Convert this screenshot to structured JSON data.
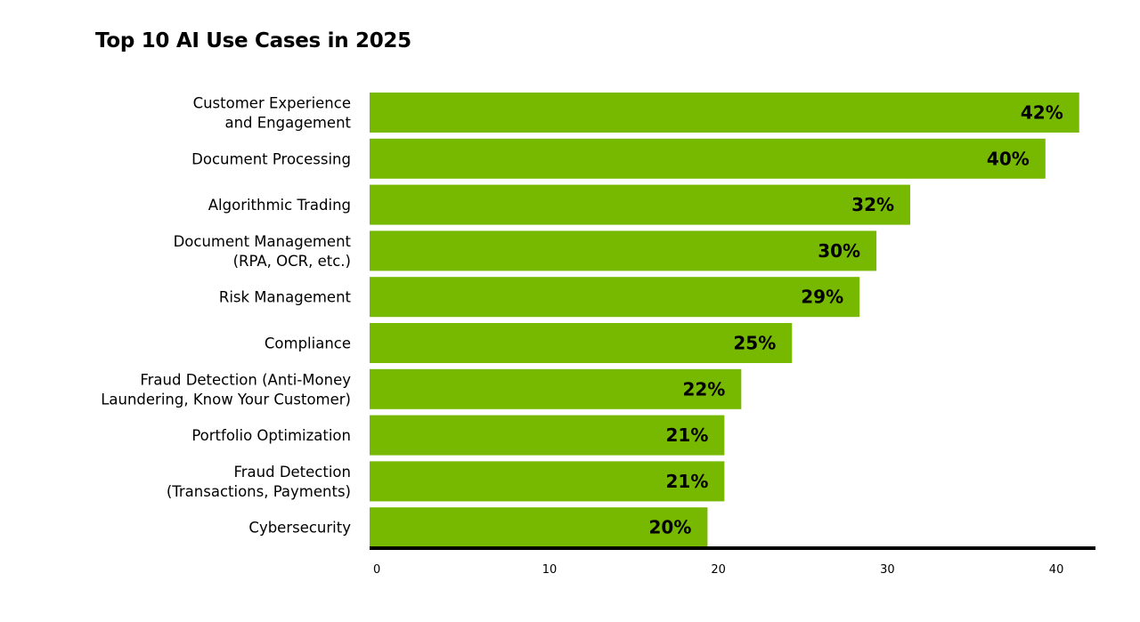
{
  "chart_data": {
    "type": "bar",
    "orientation": "horizontal",
    "title": "Top 10 AI Use Cases in 2025",
    "categories": [
      [
        "Customer Experience",
        "and Engagement"
      ],
      [
        "Document Processing"
      ],
      [
        "Algorithmic Trading"
      ],
      [
        "Document Management",
        "(RPA, OCR, etc.)"
      ],
      [
        "Risk Management"
      ],
      [
        "Compliance"
      ],
      [
        "Fraud Detection (Anti-Money",
        "Laundering, Know Your Customer)"
      ],
      [
        "Portfolio Optimization"
      ],
      [
        "Fraud Detection",
        "(Transactions, Payments)"
      ],
      [
        "Cybersecurity"
      ]
    ],
    "values": [
      42,
      40,
      32,
      30,
      29,
      25,
      22,
      21,
      21,
      20
    ],
    "value_labels": [
      "42%",
      "40%",
      "32%",
      "30%",
      "29%",
      "25%",
      "22%",
      "21%",
      "21%",
      "20%"
    ],
    "xticks": [
      0,
      10,
      20,
      30,
      40
    ],
    "xlim": [
      0,
      43
    ],
    "xlabel": "",
    "ylabel": "",
    "grid": false,
    "bar_color": "#76b900"
  }
}
